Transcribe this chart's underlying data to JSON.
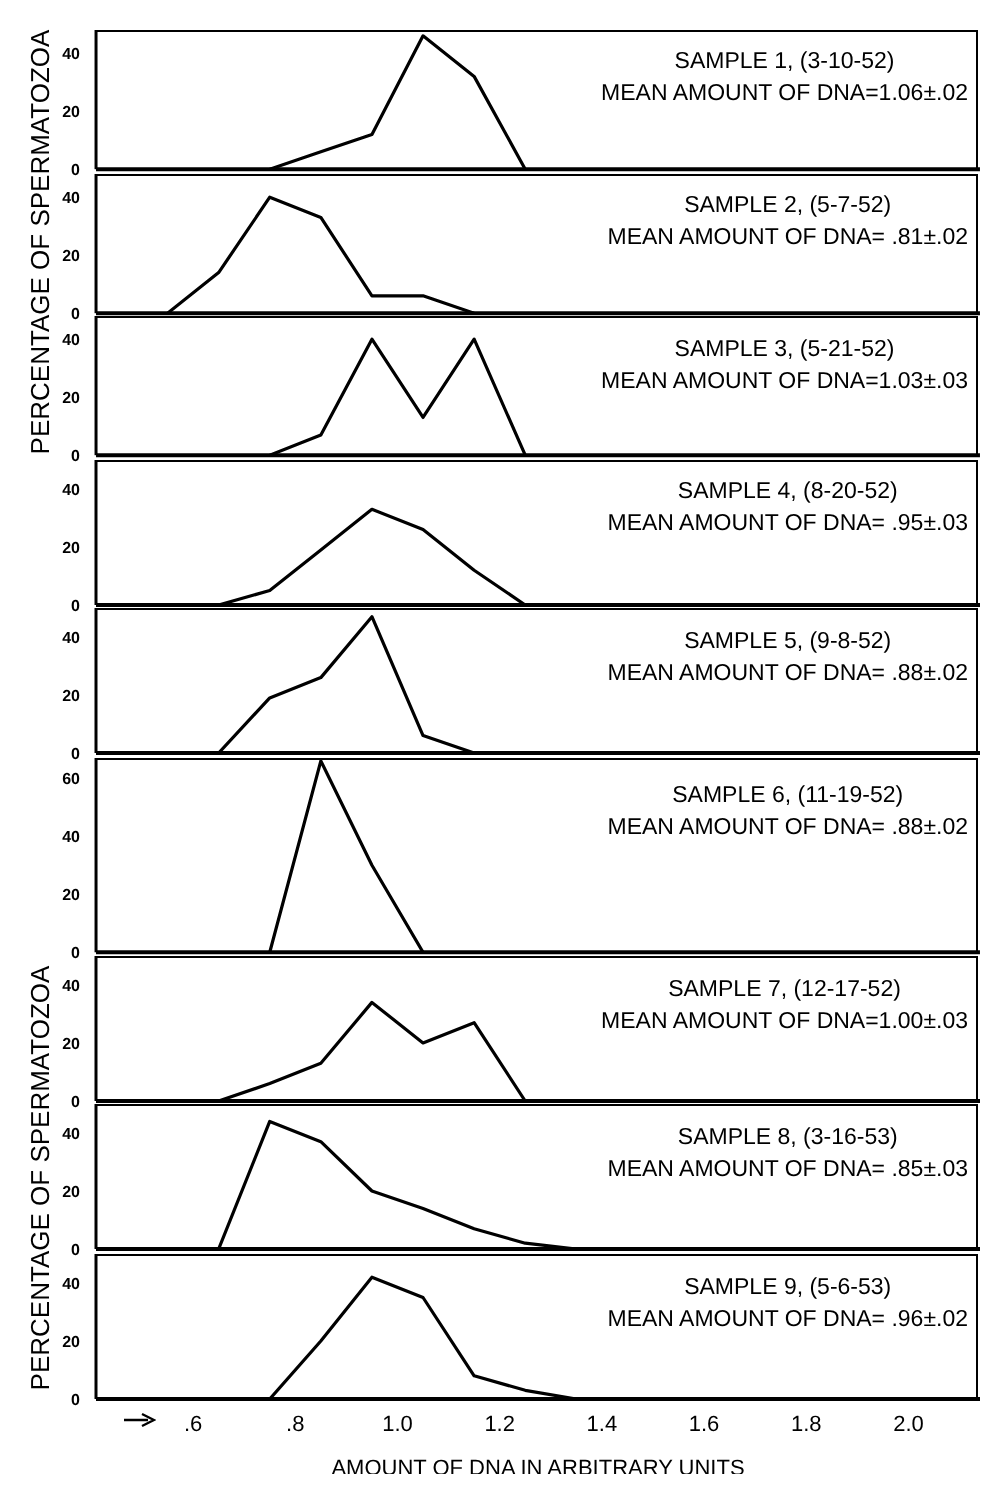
{
  "chart_data": [
    {
      "type": "line",
      "title": "SAMPLE 1, (3-10-52)",
      "subtitle": "MEAN AMOUNT OF DNA=1.06±.02",
      "x": [
        0.75,
        0.85,
        0.95,
        1.05,
        1.15,
        1.25
      ],
      "values": [
        0,
        6,
        12,
        46,
        32,
        0
      ],
      "color": "#000000",
      "xlim": [
        0.41,
        2.14
      ],
      "ylim": [
        0,
        48
      ],
      "yticks": [
        0,
        20,
        40
      ],
      "tick_labels": "y",
      "marker": "none"
    },
    {
      "type": "line",
      "title": "SAMPLE 2, (5-7-52)",
      "subtitle": "MEAN AMOUNT OF DNA= .81±.02",
      "ylabel": "PERCENTAGE OF SPERMATOZOA",
      "x": [
        0.55,
        0.65,
        0.75,
        0.85,
        0.95,
        1.05,
        1.15
      ],
      "values": [
        0,
        14,
        40,
        33,
        6,
        6,
        0
      ],
      "color": "#000000",
      "xlim": [
        0.41,
        2.14
      ],
      "ylim": [
        0,
        48
      ],
      "yticks": [
        0,
        20,
        40
      ],
      "tick_labels": "y",
      "marker": "none"
    },
    {
      "type": "line",
      "title": "SAMPLE 3, (5-21-52)",
      "subtitle": "MEAN AMOUNT OF DNA=1.03±.03",
      "x": [
        0.75,
        0.85,
        0.95,
        1.05,
        1.15,
        1.25
      ],
      "values": [
        0,
        7,
        40,
        13,
        40,
        0
      ],
      "color": "#000000",
      "xlim": [
        0.41,
        2.14
      ],
      "ylim": [
        0,
        48
      ],
      "yticks": [
        0,
        20,
        40
      ],
      "tick_labels": "y",
      "marker": "none"
    },
    {
      "type": "line",
      "title": "SAMPLE 4, (8-20-52)",
      "subtitle": "MEAN AMOUNT OF DNA= .95±.03",
      "x": [
        0.65,
        0.75,
        0.85,
        0.95,
        1.05,
        1.15,
        1.25
      ],
      "values": [
        0,
        5,
        19,
        33,
        26,
        12,
        0
      ],
      "color": "#000000",
      "xlim": [
        0.41,
        2.14
      ],
      "ylim": [
        0,
        50
      ],
      "yticks": [
        0,
        20,
        40
      ],
      "tick_labels": "y",
      "marker": "none"
    },
    {
      "type": "line",
      "title": "SAMPLE 5, (9-8-52)",
      "subtitle": "MEAN AMOUNT OF DNA= .88±.02",
      "x": [
        0.65,
        0.75,
        0.85,
        0.95,
        1.05,
        1.15
      ],
      "values": [
        0,
        19,
        26,
        47,
        6,
        0
      ],
      "color": "#000000",
      "xlim": [
        0.41,
        2.14
      ],
      "ylim": [
        0,
        50
      ],
      "yticks": [
        0,
        20,
        40
      ],
      "tick_labels": "y",
      "marker": "none"
    },
    {
      "type": "line",
      "title": "SAMPLE 6, (11-19-52)",
      "subtitle": "MEAN AMOUNT OF DNA= .88±.02",
      "x": [
        0.75,
        0.85,
        0.95,
        1.05
      ],
      "values": [
        0,
        66,
        30,
        0
      ],
      "color": "#000000",
      "xlim": [
        0.41,
        2.14
      ],
      "ylim": [
        0,
        67
      ],
      "yticks": [
        0,
        20,
        40,
        60
      ],
      "tick_labels": "y",
      "marker": "none"
    },
    {
      "type": "line",
      "title": "SAMPLE 7, (12-17-52)",
      "subtitle": "MEAN AMOUNT OF DNA=1.00±.03",
      "x": [
        0.65,
        0.75,
        0.85,
        0.95,
        1.05,
        1.15,
        1.25
      ],
      "values": [
        0,
        6,
        13,
        34,
        20,
        27,
        0
      ],
      "color": "#000000",
      "xlim": [
        0.41,
        2.14
      ],
      "ylim": [
        0,
        50
      ],
      "yticks": [
        0,
        20,
        40
      ],
      "tick_labels": "y",
      "marker": "none"
    },
    {
      "type": "line",
      "title": "SAMPLE 8, (3-16-53)",
      "subtitle": "MEAN AMOUNT OF DNA= .85±.03",
      "ylabel": "PERCENTAGE OF SPERMATOZOA",
      "x": [
        0.65,
        0.75,
        0.85,
        0.95,
        1.05,
        1.15,
        1.25,
        1.35
      ],
      "values": [
        0,
        44,
        37,
        20,
        14,
        7,
        2,
        0
      ],
      "color": "#000000",
      "xlim": [
        0.41,
        2.14
      ],
      "ylim": [
        0,
        50
      ],
      "yticks": [
        0,
        20,
        40
      ],
      "tick_labels": "y",
      "marker": "none"
    },
    {
      "type": "line",
      "title": "SAMPLE 9, (5-6-53)",
      "subtitle": "MEAN AMOUNT OF DNA= .96±.02",
      "xlabel": "AMOUNT OF DNA IN ARBITRARY UNITS",
      "x": [
        0.75,
        0.85,
        0.95,
        1.05,
        1.15,
        1.25,
        1.35
      ],
      "values": [
        0,
        20,
        42,
        35,
        8,
        3,
        0
      ],
      "color": "#000000",
      "xlim": [
        0.41,
        2.14
      ],
      "xticks": [
        {
          "value": 0.6,
          "label": ".6"
        },
        {
          "value": 0.8,
          "label": ".8"
        },
        {
          "value": 1.0,
          "label": "1.0"
        },
        {
          "value": 1.2,
          "label": "1.2"
        },
        {
          "value": 1.4,
          "label": "1.4"
        },
        {
          "value": 1.6,
          "label": "1.6"
        },
        {
          "value": 1.8,
          "label": "1.8"
        },
        {
          "value": 2.0,
          "label": "2.0"
        }
      ],
      "ylim": [
        0,
        50
      ],
      "yticks": [
        0,
        20,
        40
      ],
      "marker": "none"
    }
  ]
}
